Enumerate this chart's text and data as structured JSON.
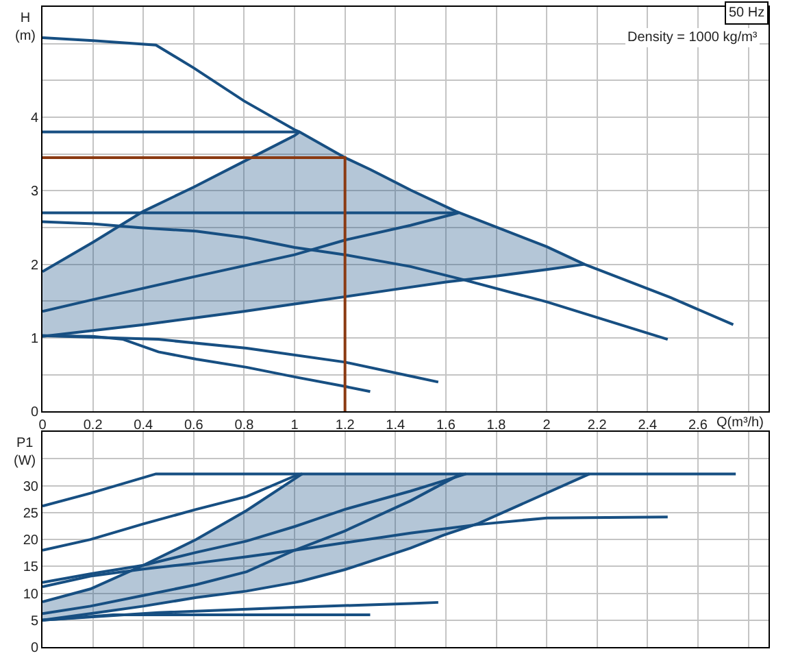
{
  "chart_data": [
    {
      "type": "line",
      "title": "50 Hz",
      "subtitle": "Density = 1000 kg/m³",
      "xlabel": "Q(m³/h)",
      "ylabel": "H\n(m)",
      "xlim": [
        0,
        2.88
      ],
      "ylim": [
        0,
        5.5
      ],
      "xticks": [
        0,
        0.2,
        0.4,
        0.6,
        0.8,
        1,
        1.2,
        1.4,
        1.6,
        1.8,
        2,
        2.2,
        2.4,
        2.6,
        {
          "value": 2.8,
          "label": null
        }
      ],
      "yticks": [
        0,
        {
          "value": 0.5,
          "label": null
        },
        1,
        {
          "value": 1.5,
          "label": null
        },
        2,
        {
          "value": 2.5,
          "label": null
        },
        3,
        {
          "value": 3.5,
          "label": null
        },
        4,
        {
          "value": 4.5,
          "label": null
        },
        {
          "value": 5,
          "label": null
        }
      ],
      "grid": true,
      "series": [
        {
          "color": "#174f82",
          "x": [
            0,
            0.2,
            0.4,
            0.6,
            0.8,
            1.0,
            1.02,
            1.2,
            1.4,
            1.6,
            1.8,
            2.0,
            2.15
          ],
          "values": [
            1.02,
            1.1,
            1.18,
            1.27,
            1.36,
            1.46,
            1.47,
            1.56,
            1.66,
            1.76,
            1.84,
            1.93,
            2.0
          ],
          "lower": [
            1.02,
            1.1,
            1.18,
            1.27,
            1.36,
            1.46,
            1.47,
            1.56,
            1.66,
            1.76,
            1.84,
            1.93,
            2.0
          ],
          "upper": [
            1.9,
            2.3,
            2.72,
            3.05,
            3.4,
            3.75,
            3.8,
            3.45,
            3.12,
            2.79,
            2.51,
            2.24,
            2.0
          ]
        },
        {
          "color": "#174f82",
          "x": [
            0,
            0.2,
            0.45,
            0.6,
            0.8,
            1.0,
            1.02,
            1.2,
            1.3,
            1.46,
            1.64,
            2.0,
            2.15,
            2.49,
            2.74
          ],
          "values": [
            5.08,
            5.04,
            4.98,
            4.67,
            4.22,
            3.83,
            3.8,
            3.45,
            3.29,
            3.01,
            2.72,
            2.24,
            2.0,
            1.55,
            1.18
          ]
        },
        {
          "color": "#174f82",
          "x": [
            0,
            1.02
          ],
          "values": [
            3.8,
            3.8
          ]
        },
        {
          "color": "#174f82",
          "x": [
            0,
            1.65
          ],
          "values": [
            2.7,
            2.7
          ]
        },
        {
          "color": "#174f82",
          "x": [
            0,
            0.2,
            0.38,
            0.61,
            0.81,
            1.0,
            1.2,
            1.46,
            1.67,
            2.0,
            2.48
          ],
          "values": [
            2.58,
            2.55,
            2.5,
            2.45,
            2.36,
            2.23,
            2.13,
            1.97,
            1.79,
            1.49,
            0.98
          ]
        },
        {
          "color": "#174f82",
          "x": [
            0,
            0.2,
            0.4,
            0.6,
            0.8,
            1.0,
            1.02
          ],
          "values": [
            1.9,
            2.3,
            2.72,
            3.05,
            3.4,
            3.75,
            3.8
          ]
        },
        {
          "color": "#174f82",
          "x": [
            0,
            0.2,
            0.6,
            1.0,
            1.2,
            1.46,
            1.65
          ],
          "values": [
            1.36,
            1.52,
            1.83,
            2.13,
            2.33,
            2.53,
            2.7
          ]
        },
        {
          "color": "#174f82",
          "x": [
            0,
            0.2,
            0.32,
            0.46,
            0.61,
            0.81,
            1.0,
            1.2,
            1.3
          ],
          "values": [
            1.03,
            1.02,
            0.98,
            0.81,
            0.71,
            0.6,
            0.47,
            0.34,
            0.27
          ]
        },
        {
          "color": "#174f82",
          "x": [
            0,
            0.46,
            0.81,
            1.2,
            1.46,
            1.57
          ],
          "values": [
            1.03,
            0.98,
            0.86,
            0.67,
            0.48,
            0.4
          ]
        },
        {
          "color": "#8b3a12",
          "x": [
            0,
            1.2,
            1.2
          ],
          "values": [
            3.45,
            3.45,
            0
          ]
        }
      ]
    },
    {
      "type": "line",
      "ylabel": "P1\n(W)",
      "xlim": [
        0,
        2.88
      ],
      "ylim": [
        0,
        40
      ],
      "xticks": [
        0,
        0.2,
        0.4,
        0.6,
        0.8,
        1,
        1.2,
        1.4,
        1.6,
        1.8,
        2,
        2.2,
        2.4,
        2.6,
        2.8
      ],
      "yticks": [
        0,
        5,
        10,
        15,
        20,
        25,
        30,
        {
          "value": 35,
          "label": null
        }
      ],
      "tick_labels": "y",
      "grid": true,
      "series": [
        {
          "color": "#174f82",
          "x": [
            0,
            0.19,
            0.4,
            0.61,
            0.81,
            1.0,
            1.03,
            1.2,
            1.46,
            1.59,
            1.73,
            1.95,
            2.17
          ],
          "values": [
            5.0,
            6.2,
            7.6,
            9.2,
            10.4,
            12.0,
            12.3,
            14.4,
            18.4,
            20.8,
            23.0,
            27.6,
            32.2
          ],
          "lower": [
            5.0,
            6.2,
            7.6,
            9.2,
            10.4,
            12.0,
            12.3,
            14.4,
            18.4,
            20.8,
            23.0,
            27.6,
            32.2
          ],
          "upper": [
            8.4,
            10.8,
            15.2,
            20.0,
            25.4,
            31.3,
            32.2,
            32.2,
            32.2,
            32.2,
            32.2,
            32.2,
            32.2
          ]
        },
        {
          "color": "#174f82",
          "x": [
            0,
            0.19,
            0.45,
            2.75
          ],
          "values": [
            26.2,
            28.6,
            32.2,
            32.2
          ]
        },
        {
          "color": "#174f82",
          "x": [
            0,
            0.19,
            0.4,
            0.61,
            0.81,
            1.0,
            1.03
          ],
          "values": [
            18.0,
            20.0,
            22.9,
            25.6,
            28.0,
            31.8,
            32.2
          ]
        },
        {
          "color": "#174f82",
          "x": [
            0,
            0.19,
            0.4,
            0.61,
            0.81,
            1.03
          ],
          "values": [
            8.4,
            10.8,
            15.2,
            20.0,
            25.4,
            32.2
          ]
        },
        {
          "color": "#174f82",
          "x": [
            0,
            0.19,
            0.4,
            0.61,
            0.81,
            1.0,
            1.2,
            1.46,
            1.68
          ],
          "values": [
            12.0,
            13.6,
            15.2,
            17.6,
            19.7,
            22.4,
            25.6,
            29.0,
            32.2
          ]
        },
        {
          "color": "#174f82",
          "x": [
            0,
            0.19,
            0.4,
            0.61,
            0.81,
            1.0,
            1.2,
            1.46,
            1.73,
            2.0,
            2.48
          ],
          "values": [
            11.2,
            13.2,
            14.5,
            15.6,
            16.8,
            18.0,
            19.4,
            21.2,
            22.8,
            24.0,
            24.2
          ]
        },
        {
          "color": "#174f82",
          "x": [
            0,
            0.19,
            0.4,
            0.61,
            0.81,
            1.0,
            1.2,
            1.46,
            1.66
          ],
          "values": [
            6.2,
            7.6,
            9.6,
            11.6,
            14.0,
            18.0,
            21.6,
            27.2,
            32.2
          ]
        },
        {
          "color": "#174f82",
          "x": [
            0,
            0.28,
            1.3
          ],
          "values": [
            5.0,
            6.0,
            6.0
          ]
        },
        {
          "color": "#174f82",
          "x": [
            0,
            0.46,
            1.0,
            1.46,
            1.57
          ],
          "values": [
            5.0,
            6.4,
            7.4,
            8.1,
            8.3
          ]
        }
      ]
    }
  ]
}
